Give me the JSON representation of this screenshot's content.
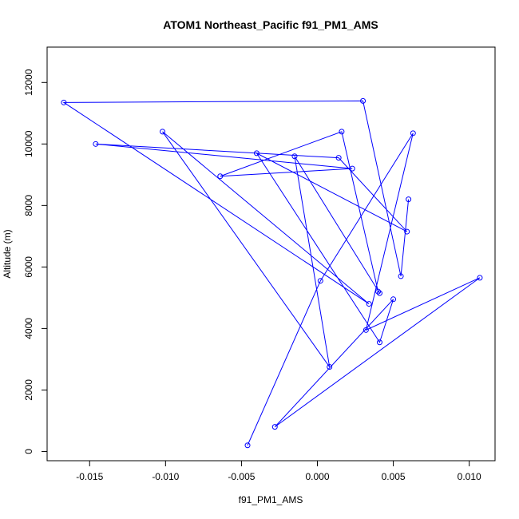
{
  "chart_data": {
    "type": "line",
    "title": "ATOM1 Northeast_Pacific f91_PM1_AMS",
    "xlabel": "f91_PM1_AMS",
    "ylabel": "Altitude (m)",
    "xlim": [
      -0.0178,
      0.0117
    ],
    "ylim": [
      -300,
      13150
    ],
    "x_ticks": [
      -0.015,
      -0.01,
      -0.005,
      0.0,
      0.005,
      0.01
    ],
    "x_tick_labels": [
      "-0.015",
      "-0.010",
      "-0.005",
      "0.000",
      "0.005",
      "0.010"
    ],
    "y_ticks": [
      0,
      2000,
      4000,
      6000,
      8000,
      10000,
      12000
    ],
    "y_tick_labels": [
      "0",
      "2000",
      "4000",
      "6000",
      "8000",
      "10000",
      "12000"
    ],
    "grid": false,
    "marker": "open-circle",
    "series_color": "#0000ff",
    "series": [
      {
        "x": [
          -0.0046,
          0.0002,
          0.0063,
          0.0032,
          0.0107,
          -0.0028,
          0.005,
          0.0041,
          -0.004,
          0.0059,
          0.0014,
          -0.0146,
          0.0023,
          -0.0064,
          0.0016,
          0.004,
          0.0041,
          -0.0015,
          0.0008,
          -0.0102,
          0.0034,
          -0.0167,
          0.003,
          0.0055,
          0.006
        ],
        "y": [
          200,
          5550,
          10350,
          3950,
          5650,
          800,
          4950,
          3550,
          9700,
          7150,
          9550,
          10000,
          9200,
          8950,
          10400,
          5200,
          5150,
          9600,
          2750,
          10400,
          4800,
          11350,
          11400,
          5700,
          8200
        ]
      }
    ]
  }
}
